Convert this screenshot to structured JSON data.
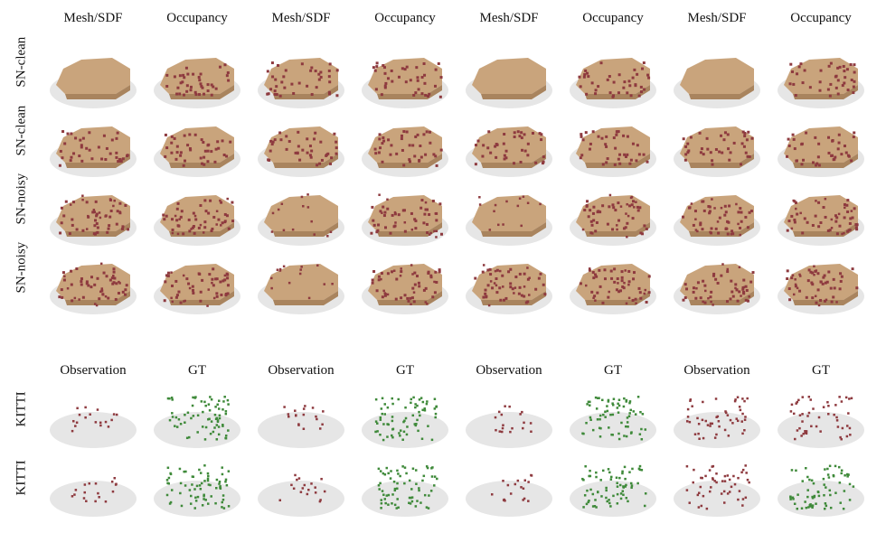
{
  "header_top": [
    "Mesh/SDF",
    "Occupancy",
    "Mesh/SDF",
    "Occupancy",
    "Mesh/SDF",
    "Occupancy",
    "Mesh/SDF",
    "Occupancy"
  ],
  "header_bottom": [
    "Observation",
    "GT",
    "Observation",
    "GT",
    "Observation",
    "GT",
    "Observation",
    "GT"
  ],
  "rows": [
    "SN-clean",
    "SN-clean",
    "SN-noisy",
    "SN-noisy",
    "KITTI",
    "KITTI"
  ],
  "colors": {
    "car_fill": "#c9a47c",
    "car_shadow": "#a9845e",
    "red_points": "#8e3a3f",
    "green_points": "#3f8a3a",
    "ground": "#e6e6e6"
  }
}
